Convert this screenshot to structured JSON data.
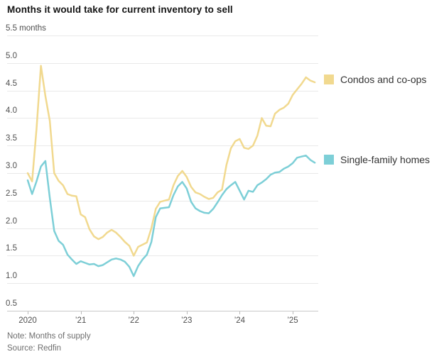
{
  "page": {
    "title": "Months it would take for current inventory to sell",
    "note": "Note: Months of supply",
    "source": "Source: Redfin"
  },
  "chart_data": {
    "type": "line",
    "title": "Months it would take for current inventory to sell",
    "unit": "months",
    "x_start": "2020-01",
    "x_frequency": "monthly",
    "x_tick_labels": [
      "2020",
      "’21",
      "’22",
      "’23",
      "’24",
      "’25"
    ],
    "y_tick_labels": [
      "5.5 months",
      "5.0",
      "4.5",
      "4.0",
      "3.5",
      "3.0",
      "2.5",
      "2.0",
      "1.5",
      "1.0",
      "0.5"
    ],
    "y_tick_values": [
      5.5,
      5.0,
      4.5,
      4.0,
      3.5,
      3.0,
      2.5,
      2.0,
      1.5,
      1.0,
      0.5
    ],
    "ylim": [
      0.5,
      5.5
    ],
    "grid": "horizontal",
    "legend_position": "right",
    "series": [
      {
        "name": "Condos and co-ops",
        "color": "#F1D98F",
        "values": [
          3.0,
          2.85,
          3.8,
          4.95,
          4.4,
          3.95,
          3.0,
          2.86,
          2.78,
          2.62,
          2.59,
          2.58,
          2.25,
          2.2,
          1.98,
          1.85,
          1.8,
          1.84,
          1.92,
          1.97,
          1.92,
          1.84,
          1.75,
          1.68,
          1.5,
          1.66,
          1.7,
          1.74,
          2.0,
          2.35,
          2.48,
          2.5,
          2.52,
          2.78,
          2.95,
          3.04,
          2.93,
          2.75,
          2.65,
          2.62,
          2.57,
          2.53,
          2.55,
          2.65,
          2.7,
          3.15,
          3.45,
          3.58,
          3.62,
          3.46,
          3.44,
          3.5,
          3.68,
          4.0,
          3.86,
          3.85,
          4.08,
          4.15,
          4.19,
          4.26,
          4.42,
          4.52,
          4.62,
          4.74,
          4.68,
          4.65
        ]
      },
      {
        "name": "Single-family homes",
        "color": "#7DCFD7",
        "values": [
          2.87,
          2.62,
          2.85,
          3.12,
          3.22,
          2.55,
          1.95,
          1.77,
          1.7,
          1.52,
          1.43,
          1.35,
          1.4,
          1.37,
          1.34,
          1.35,
          1.31,
          1.33,
          1.38,
          1.43,
          1.45,
          1.43,
          1.39,
          1.3,
          1.13,
          1.31,
          1.43,
          1.52,
          1.75,
          2.2,
          2.36,
          2.37,
          2.38,
          2.6,
          2.76,
          2.84,
          2.72,
          2.48,
          2.36,
          2.31,
          2.28,
          2.27,
          2.35,
          2.47,
          2.6,
          2.71,
          2.78,
          2.84,
          2.68,
          2.52,
          2.68,
          2.66,
          2.78,
          2.83,
          2.89,
          2.97,
          3.01,
          3.02,
          3.08,
          3.12,
          3.18,
          3.28,
          3.3,
          3.32,
          3.24,
          3.19
        ]
      }
    ]
  }
}
